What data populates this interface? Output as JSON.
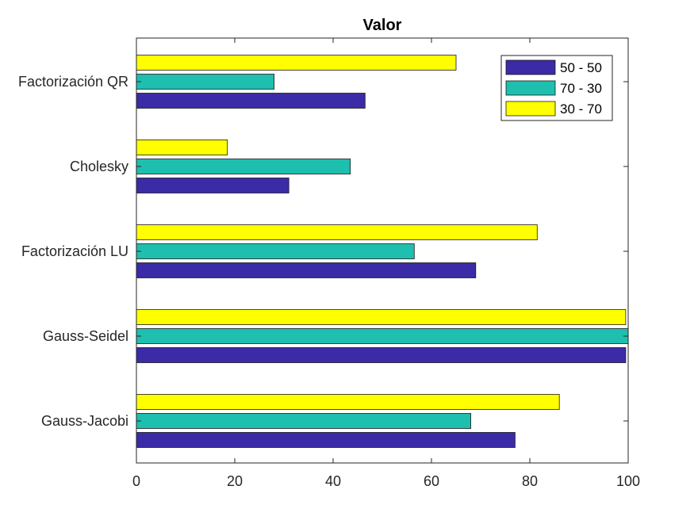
{
  "chart_data": {
    "type": "bar",
    "orientation": "horizontal",
    "title": "Valor",
    "xlabel": "",
    "ylabel": "",
    "xlim": [
      0,
      100
    ],
    "x_ticks": [
      0,
      20,
      40,
      60,
      80,
      100
    ],
    "categories": [
      "Gauss-Jacobi",
      "Gauss-Seidel",
      "Factorización LU",
      "Cholesky",
      "Factorización QR"
    ],
    "series": [
      {
        "name": "50 - 50",
        "color": "#3b2ba6",
        "values": [
          77,
          99.5,
          69,
          31,
          46.5
        ]
      },
      {
        "name": "70 - 30",
        "color": "#1ebfae",
        "values": [
          68,
          100,
          56.5,
          43.5,
          28
        ]
      },
      {
        "name": "30 - 70",
        "color": "#ffff00",
        "values": [
          86,
          99.5,
          81.5,
          18.5,
          65
        ]
      }
    ],
    "legend_position": "top-right",
    "grid": false
  }
}
